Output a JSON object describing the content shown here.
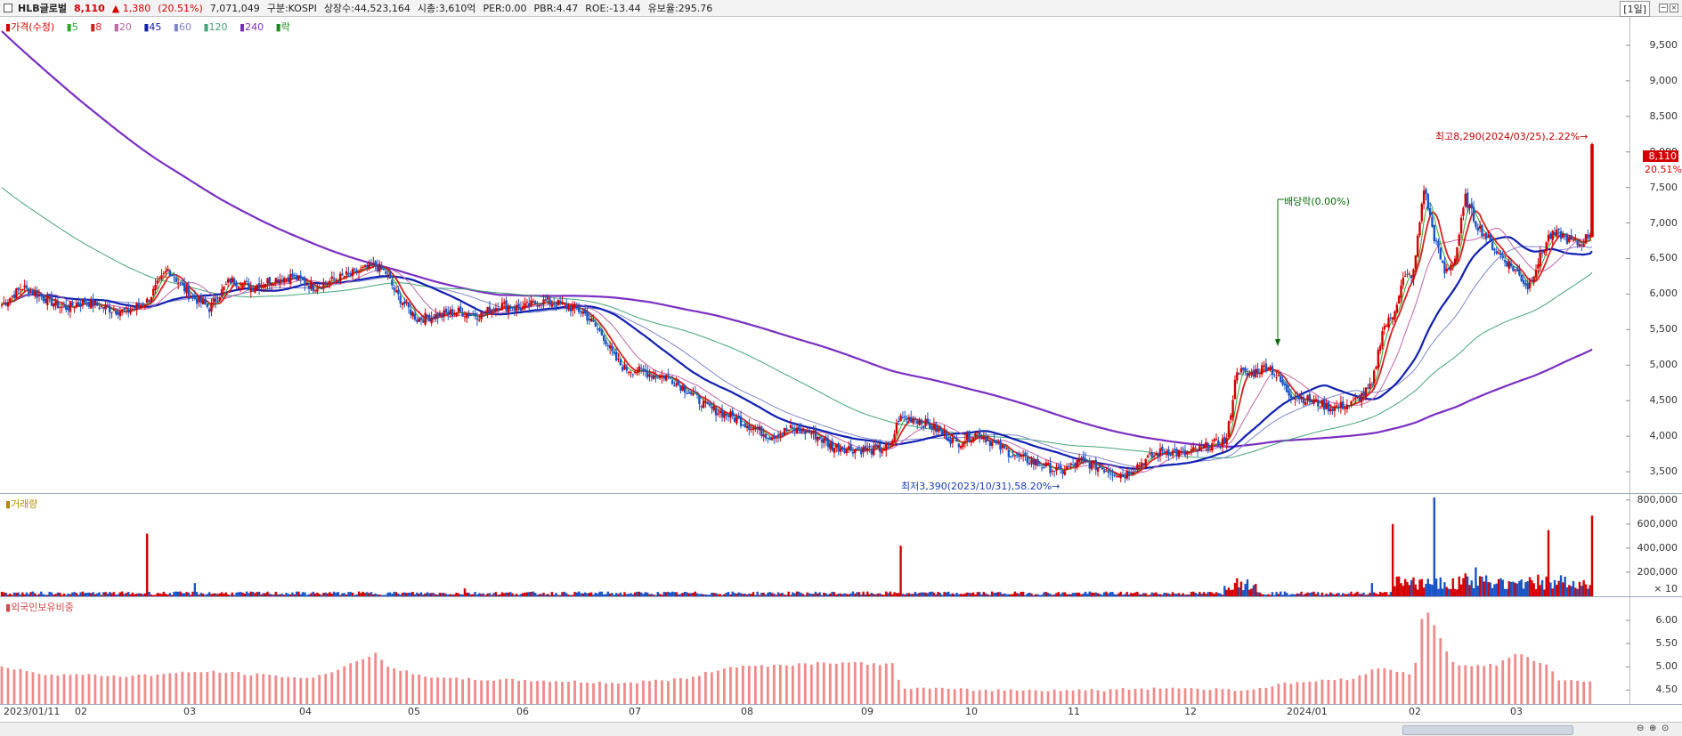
{
  "header": {
    "name": "HLB글로벌",
    "price": "8,110",
    "change": "▲ 1,380",
    "change_pct": "(20.51%)",
    "volume": "7,071,049",
    "market": "구분:KOSPI",
    "shares": "상장수:44,523,164",
    "market_cap": "시총:3,610억",
    "per": "PER:0.00",
    "pbr": "PBR:4.47",
    "roe": "ROE:-13.44",
    "reserve": "유보율:295.76",
    "period": "[1일]"
  },
  "colors": {
    "up": "#d40000",
    "down": "#1a53c6",
    "ma5": "#2aa82a",
    "ma8": "#d71f1f",
    "ma20": "#c064a8",
    "ma45": "#0f1fb0",
    "ma60": "#7d86cc",
    "ma120": "#44a278",
    "ma240": "#7a2ec0",
    "foreign": "#f08a8a"
  },
  "legend": {
    "price_label": "가격(수정)",
    "ma5": "5",
    "ma8": "8",
    "ma20": "20",
    "ma45": "45",
    "ma60": "60",
    "ma120": "120",
    "ma240": "240",
    "drop": "락"
  },
  "annotations": {
    "high": "최고8,290(2024/03/25),2.22%→",
    "low": "최저3,390(2023/10/31),58.20%→",
    "dividend": "배당락(0.00%)",
    "last_price": "8,110",
    "last_pct": "20.51%"
  },
  "volume_pane": {
    "title": "거래량",
    "unit": "× 10"
  },
  "foreign_pane": {
    "title": "외국인보유비중"
  },
  "chart_data": [
    {
      "type": "candlestick",
      "title": "가격(수정)",
      "x_labels": [
        "2023/01/11",
        "02",
        "03",
        "04",
        "05",
        "06",
        "07",
        "08",
        "09",
        "10",
        "11",
        "12",
        "2024/01",
        "02",
        "03"
      ],
      "yticks": [
        "9,500",
        "9,000",
        "8,500",
        "8,000",
        "7,500",
        "7,000",
        "6,500",
        "6,000",
        "5,500",
        "5,000",
        "4,500",
        "4,000",
        "3,500"
      ],
      "ylim": [
        3200,
        9900
      ],
      "close_path": [
        [
          0,
          5850
        ],
        [
          10,
          6100
        ],
        [
          20,
          5950
        ],
        [
          30,
          5800
        ],
        [
          40,
          5900
        ],
        [
          50,
          5800
        ],
        [
          60,
          5750
        ],
        [
          70,
          5900
        ],
        [
          80,
          6350
        ],
        [
          90,
          6000
        ],
        [
          100,
          5800
        ],
        [
          110,
          6200
        ],
        [
          120,
          6100
        ],
        [
          130,
          6200
        ],
        [
          140,
          6250
        ],
        [
          150,
          6100
        ],
        [
          160,
          6200
        ],
        [
          170,
          6300
        ],
        [
          180,
          6400
        ],
        [
          185,
          6300
        ],
        [
          190,
          6000
        ],
        [
          200,
          5650
        ],
        [
          210,
          5700
        ],
        [
          220,
          5750
        ],
        [
          230,
          5700
        ],
        [
          240,
          5850
        ],
        [
          250,
          5800
        ],
        [
          260,
          5900
        ],
        [
          270,
          5850
        ],
        [
          280,
          5750
        ],
        [
          290,
          5400
        ],
        [
          295,
          5100
        ],
        [
          300,
          4950
        ],
        [
          310,
          4900
        ],
        [
          315,
          4850
        ],
        [
          320,
          4850
        ],
        [
          330,
          4650
        ],
        [
          340,
          4400
        ],
        [
          350,
          4300
        ],
        [
          360,
          4150
        ],
        [
          370,
          4000
        ],
        [
          380,
          4100
        ],
        [
          390,
          4050
        ],
        [
          395,
          3950
        ],
        [
          400,
          3850
        ],
        [
          410,
          3820
        ],
        [
          420,
          3800
        ],
        [
          428,
          3850
        ],
        [
          432,
          4250
        ],
        [
          440,
          4250
        ],
        [
          450,
          4100
        ],
        [
          460,
          3900
        ],
        [
          470,
          4050
        ],
        [
          480,
          3850
        ],
        [
          490,
          3700
        ],
        [
          500,
          3600
        ],
        [
          510,
          3500
        ],
        [
          520,
          3650
        ],
        [
          530,
          3550
        ],
        [
          540,
          3450
        ],
        [
          550,
          3650
        ],
        [
          560,
          3800
        ],
        [
          570,
          3750
        ],
        [
          580,
          3850
        ],
        [
          590,
          3950
        ],
        [
          595,
          4950
        ],
        [
          600,
          4850
        ],
        [
          610,
          5000
        ],
        [
          620,
          4600
        ],
        [
          630,
          4500
        ],
        [
          640,
          4400
        ],
        [
          650,
          4450
        ],
        [
          660,
          4700
        ],
        [
          665,
          5500
        ],
        [
          670,
          5700
        ],
        [
          675,
          6200
        ],
        [
          680,
          6300
        ],
        [
          685,
          7500
        ],
        [
          690,
          6800
        ],
        [
          695,
          6300
        ],
        [
          700,
          6500
        ],
        [
          705,
          7350
        ],
        [
          710,
          7000
        ],
        [
          720,
          6600
        ],
        [
          730,
          6300
        ],
        [
          735,
          6100
        ],
        [
          740,
          6450
        ],
        [
          745,
          6800
        ],
        [
          750,
          6850
        ],
        [
          755,
          6750
        ],
        [
          760,
          6700
        ],
        [
          765,
          6850
        ],
        [
          766,
          8110
        ]
      ],
      "high": {
        "value": 8290,
        "date": "2024/03/25"
      },
      "low": {
        "value": 3390,
        "date": "2023/10/31"
      },
      "last": 8110
    },
    {
      "type": "bar",
      "title": "거래량",
      "yticks": [
        "800,000",
        "600,000",
        "400,000",
        "200,000"
      ],
      "ylim": [
        0,
        850000
      ],
      "spikes": [
        [
          70,
          520000
        ],
        [
          93,
          110000
        ],
        [
          223,
          65000
        ],
        [
          433,
          420000
        ],
        [
          595,
          150000
        ],
        [
          600,
          140000
        ],
        [
          660,
          110000
        ],
        [
          670,
          600000
        ],
        [
          690,
          820000
        ],
        [
          705,
          190000
        ],
        [
          710,
          240000
        ],
        [
          740,
          180000
        ],
        [
          745,
          550000
        ],
        [
          766,
          670000
        ]
      ],
      "base": 25000
    },
    {
      "type": "bar",
      "title": "외국인보유비중",
      "yticks": [
        "6.00",
        "5.50",
        "5.00",
        "4.50"
      ],
      "ylim": [
        4.2,
        6.5
      ],
      "path": [
        [
          0,
          5.0
        ],
        [
          20,
          4.85
        ],
        [
          60,
          4.8
        ],
        [
          100,
          4.9
        ],
        [
          150,
          4.75
        ],
        [
          170,
          5.1
        ],
        [
          180,
          5.3
        ],
        [
          185,
          5.0
        ],
        [
          210,
          4.75
        ],
        [
          260,
          4.7
        ],
        [
          300,
          4.65
        ],
        [
          330,
          4.75
        ],
        [
          350,
          5.0
        ],
        [
          380,
          5.05
        ],
        [
          400,
          5.1
        ],
        [
          430,
          5.05
        ],
        [
          433,
          4.55
        ],
        [
          470,
          4.5
        ],
        [
          530,
          4.5
        ],
        [
          560,
          4.55
        ],
        [
          600,
          4.5
        ],
        [
          620,
          4.65
        ],
        [
          650,
          4.75
        ],
        [
          665,
          5.0
        ],
        [
          680,
          4.8
        ],
        [
          685,
          6.35
        ],
        [
          690,
          5.9
        ],
        [
          700,
          5.0
        ],
        [
          720,
          5.05
        ],
        [
          730,
          5.3
        ],
        [
          745,
          5.0
        ],
        [
          750,
          4.7
        ],
        [
          766,
          4.7
        ]
      ]
    }
  ]
}
